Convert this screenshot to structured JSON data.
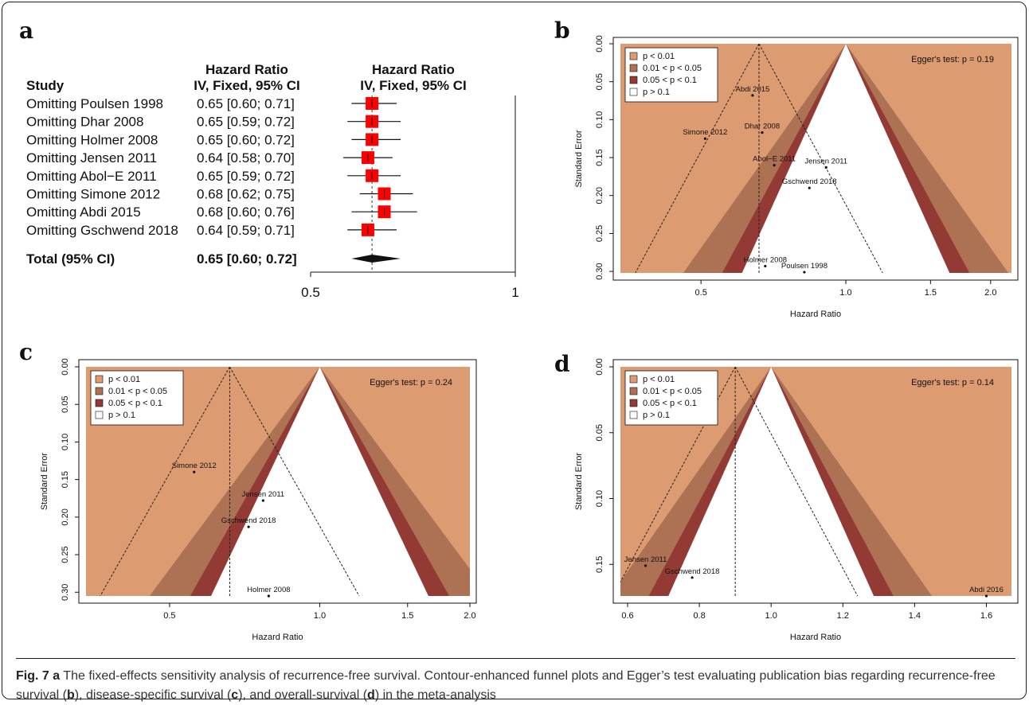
{
  "panels": {
    "a": "a",
    "b": "b",
    "c": "c",
    "d": "d"
  },
  "caption": {
    "fig_label": "Fig. 7",
    "panel_a": "a",
    "text1": " The fixed-effects sensitivity analysis of recurrence-free survival. Contour-enhanced funnel plots and Egger’s test evaluating publication bias regarding recurrence-free survival (",
    "ref_b": "b",
    "text2": "), disease-specific survival (",
    "ref_c": "c",
    "text3": "), and overall-survival (",
    "ref_d": "d",
    "text4": ") in the meta-analysis"
  },
  "colors": {
    "p001": "#dd9b71",
    "p005": "#ad7253",
    "p01": "#923a33",
    "ns": "#ffffff",
    "box": "#ff0000"
  },
  "chart_data": [
    {
      "type": "forest",
      "panel": "a",
      "header_study": "Study",
      "header_hr_text": [
        "Hazard Ratio",
        "IV, Fixed, 95% CI"
      ],
      "header_hr_plot": [
        "Hazard Ratio",
        "IV, Fixed, 95% CI"
      ],
      "rows": [
        {
          "study": "Omitting Poulsen 1998",
          "ci_text": "0.65 [0.60; 0.71]",
          "hr": 0.65,
          "lo": 0.6,
          "hi": 0.71
        },
        {
          "study": "Omitting Dhar 2008",
          "ci_text": "0.65 [0.59; 0.72]",
          "hr": 0.65,
          "lo": 0.59,
          "hi": 0.72
        },
        {
          "study": "Omitting Holmer 2008",
          "ci_text": "0.65 [0.60; 0.72]",
          "hr": 0.65,
          "lo": 0.6,
          "hi": 0.72
        },
        {
          "study": "Omitting Jensen 2011",
          "ci_text": "0.64 [0.58; 0.70]",
          "hr": 0.64,
          "lo": 0.58,
          "hi": 0.7
        },
        {
          "study": "Omitting Abol−E 2011",
          "ci_text": "0.65 [0.59; 0.72]",
          "hr": 0.65,
          "lo": 0.59,
          "hi": 0.72
        },
        {
          "study": "Omitting Simone 2012",
          "ci_text": "0.68 [0.62; 0.75]",
          "hr": 0.68,
          "lo": 0.62,
          "hi": 0.75
        },
        {
          "study": "Omitting Abdi 2015",
          "ci_text": "0.68 [0.60; 0.76]",
          "hr": 0.68,
          "lo": 0.6,
          "hi": 0.76
        },
        {
          "study": "Omitting Gschwend 2018",
          "ci_text": "0.64 [0.59; 0.71]",
          "hr": 0.64,
          "lo": 0.59,
          "hi": 0.71
        }
      ],
      "total": {
        "study": "Total (95% CI)",
        "ci_text": "0.65 [0.60; 0.72]",
        "hr": 0.65,
        "lo": 0.6,
        "hi": 0.72
      },
      "x_ticks": [
        {
          "v": 0.5,
          "label": "0.5"
        },
        {
          "v": 1,
          "label": "1"
        }
      ],
      "xlim": [
        0.5,
        1.0
      ]
    },
    {
      "type": "funnel",
      "panel": "b",
      "xlabel": "Hazard Ratio",
      "ylabel": "Standard Error",
      "log_x": true,
      "xlim": [
        0.34,
        2.21
      ],
      "ylim": [
        0,
        0.302
      ],
      "x_ticks": [
        {
          "v": 0.5,
          "label": "0.5"
        },
        {
          "v": 1.0,
          "label": "1.0"
        },
        {
          "v": 1.5,
          "label": "1.5"
        },
        {
          "v": 2.0,
          "label": "2.0"
        }
      ],
      "y_ticks": [
        {
          "v": 0,
          "label": "0.00"
        },
        {
          "v": 0.05,
          "label": "0.05"
        },
        {
          "v": 0.1,
          "label": "0.10"
        },
        {
          "v": 0.15,
          "label": "0.15"
        },
        {
          "v": 0.2,
          "label": "0.20"
        },
        {
          "v": 0.25,
          "label": "0.25"
        },
        {
          "v": 0.3,
          "label": "0.30"
        }
      ],
      "pooled": 0.66,
      "egger": "Egger's test: p = 0.19",
      "legend": [
        "p < 0.01",
        "0.01 < p < 0.05",
        "0.05 < p < 0.1",
        "p > 0.1"
      ],
      "points": [
        {
          "label": "Abdi 2015",
          "x": 0.64,
          "y": 0.068
        },
        {
          "label": "Simone 2012",
          "x": 0.51,
          "y": 0.125
        },
        {
          "label": "Dhar 2008",
          "x": 0.67,
          "y": 0.117
        },
        {
          "label": "Abol−E 2011",
          "x": 0.71,
          "y": 0.16
        },
        {
          "label": "Jensen 2011",
          "x": 0.91,
          "y": 0.163
        },
        {
          "label": "Gschwend 2018",
          "x": 0.84,
          "y": 0.19
        },
        {
          "label": "Holmer 2008",
          "x": 0.68,
          "y": 0.293
        },
        {
          "label": "Poulsen 1998",
          "x": 0.82,
          "y": 0.301
        }
      ]
    },
    {
      "type": "funnel",
      "panel": "c",
      "xlabel": "Hazard Ratio",
      "ylabel": "Standard Error",
      "log_x": true,
      "xlim": [
        0.34,
        2.0
      ],
      "ylim": [
        0,
        0.305
      ],
      "x_ticks": [
        {
          "v": 0.5,
          "label": "0.5"
        },
        {
          "v": 1.0,
          "label": "1.0"
        },
        {
          "v": 1.5,
          "label": "1.5"
        },
        {
          "v": 2.0,
          "label": "2.0"
        }
      ],
      "y_ticks": [
        {
          "v": 0,
          "label": "0.00"
        },
        {
          "v": 0.05,
          "label": "0.05"
        },
        {
          "v": 0.1,
          "label": "0.10"
        },
        {
          "v": 0.15,
          "label": "0.15"
        },
        {
          "v": 0.2,
          "label": "0.20"
        },
        {
          "v": 0.25,
          "label": "0.25"
        },
        {
          "v": 0.3,
          "label": "0.30"
        }
      ],
      "pooled": 0.66,
      "egger": "Egger's test: p = 0.24",
      "legend": [
        "p < 0.01",
        "0.01 < p < 0.05",
        "0.05 < p < 0.1",
        "p > 0.1"
      ],
      "points": [
        {
          "label": "Simone 2012",
          "x": 0.56,
          "y": 0.14
        },
        {
          "label": "Jensen 2011",
          "x": 0.77,
          "y": 0.178
        },
        {
          "label": "Gschwend 2018",
          "x": 0.72,
          "y": 0.213
        },
        {
          "label": "Holmer 2008",
          "x": 0.79,
          "y": 0.305
        }
      ]
    },
    {
      "type": "funnel",
      "panel": "d",
      "xlabel": "Hazard Ratio",
      "ylabel": "Standard Error",
      "log_x": false,
      "xlim": [
        0.58,
        1.67
      ],
      "ylim": [
        0,
        0.174
      ],
      "x_ticks": [
        {
          "v": 0.6,
          "label": "0.6"
        },
        {
          "v": 0.8,
          "label": "0.8"
        },
        {
          "v": 1.0,
          "label": "1.0"
        },
        {
          "v": 1.2,
          "label": "1.2"
        },
        {
          "v": 1.4,
          "label": "1.4"
        },
        {
          "v": 1.6,
          "label": "1.6"
        }
      ],
      "y_ticks": [
        {
          "v": 0,
          "label": "0.00"
        },
        {
          "v": 0.05,
          "label": "0.05"
        },
        {
          "v": 0.1,
          "label": "0.10"
        },
        {
          "v": 0.15,
          "label": "0.15"
        }
      ],
      "pooled": 0.9,
      "egger": "Egger's test: p = 0.14",
      "legend": [
        "p < 0.01",
        "0.01 < p < 0.05",
        "0.05 < p < 0.1",
        "p > 0.1"
      ],
      "points": [
        {
          "label": "Jensen 2011",
          "x": 0.65,
          "y": 0.151
        },
        {
          "label": "Gschwend 2018",
          "x": 0.78,
          "y": 0.16
        },
        {
          "label": "Abdi 2016",
          "x": 1.6,
          "y": 0.174
        }
      ]
    }
  ]
}
